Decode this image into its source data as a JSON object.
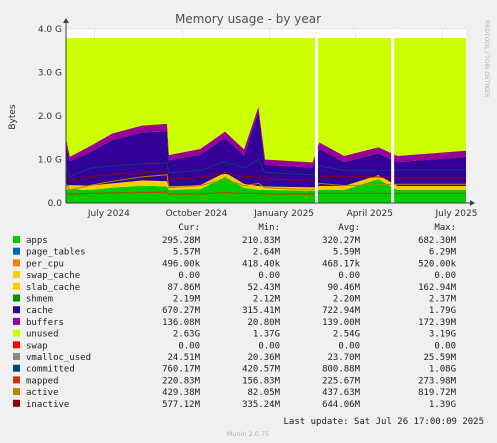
{
  "chart_data": {
    "type": "area",
    "title": "Memory usage - by year",
    "ylabel": "Bytes",
    "watermark": "RRDTOOL / TOBI OETIKER",
    "footer": "Munin 2.0.75",
    "last_update": "Last update: Sat Jul 26 17:00:09 2025",
    "x_ticks": [
      "July 2024",
      "October 2024",
      "January 2025",
      "April 2025",
      "July 2025"
    ],
    "y_ticks": [
      "0.0",
      "1.0 G",
      "2.0 G",
      "3.0 G",
      "4.0 G"
    ],
    "y_tick_values": [
      0,
      1,
      2,
      3,
      4
    ],
    "ylim": [
      0,
      4
    ],
    "y_unit": "GB",
    "time_range": [
      "2024-06-01",
      "2025-07-26"
    ],
    "gaps": [
      "2025-02-19",
      "2025-05-10"
    ],
    "columns": [
      "Cur:",
      "Min:",
      "Avg:",
      "Max:"
    ],
    "colors": {
      "apps": "#00cc00",
      "page_tables": "#0066b3",
      "per_cpu": "#ff8000",
      "swap_cache": "#ffcc00",
      "slab_cache": "#ffcc00",
      "shmem": "#008f00",
      "cache": "#330099",
      "buffers": "#990099",
      "unused": "#ccff00",
      "swap": "#ff0000",
      "vmalloc_used": "#888888",
      "committed": "#00477a",
      "mapped": "#cc3300",
      "active": "#bb8500",
      "inactive": "#8f0000"
    },
    "series": [
      {
        "name": "apps",
        "cur": "295.28M",
        "min": "210.83M",
        "avg": "320.27M",
        "max": "682.30M"
      },
      {
        "name": "page_tables",
        "cur": "5.57M",
        "min": "2.64M",
        "avg": "5.59M",
        "max": "6.29M"
      },
      {
        "name": "per_cpu",
        "cur": "496.00k",
        "min": "418.40k",
        "avg": "468.17k",
        "max": "520.00k"
      },
      {
        "name": "swap_cache",
        "cur": "0.00",
        "min": "0.00",
        "avg": "0.00",
        "max": "0.00"
      },
      {
        "name": "slab_cache",
        "cur": "87.86M",
        "min": "52.43M",
        "avg": "90.46M",
        "max": "162.94M"
      },
      {
        "name": "shmem",
        "cur": "2.19M",
        "min": "2.12M",
        "avg": "2.20M",
        "max": "2.37M"
      },
      {
        "name": "cache",
        "cur": "670.27M",
        "min": "315.41M",
        "avg": "722.94M",
        "max": "1.79G"
      },
      {
        "name": "buffers",
        "cur": "136.08M",
        "min": "20.80M",
        "avg": "139.00M",
        "max": "172.39M"
      },
      {
        "name": "unused",
        "cur": "2.63G",
        "min": "1.37G",
        "avg": "2.54G",
        "max": "3.19G"
      },
      {
        "name": "swap",
        "cur": "0.00",
        "min": "0.00",
        "avg": "0.00",
        "max": "0.00"
      },
      {
        "name": "vmalloc_used",
        "cur": "24.51M",
        "min": "20.36M",
        "avg": "23.70M",
        "max": "25.59M"
      },
      {
        "name": "committed",
        "cur": "760.17M",
        "min": "420.57M",
        "avg": "800.88M",
        "max": "1.08G"
      },
      {
        "name": "mapped",
        "cur": "220.83M",
        "min": "156.83M",
        "avg": "225.67M",
        "max": "273.98M"
      },
      {
        "name": "active",
        "cur": "429.38M",
        "min": "82.05M",
        "avg": "437.63M",
        "max": "819.72M"
      },
      {
        "name": "inactive",
        "cur": "577.12M",
        "min": "335.24M",
        "avg": "644.06M",
        "max": "1.39G"
      }
    ],
    "profile": [
      {
        "date": "2024-06-01",
        "apps": 0.3,
        "slab": 0.09,
        "cache": 0.95,
        "buffers": 0.14,
        "committed": 0.85,
        "mapped": 0.22,
        "active": 0.45,
        "inactive": 0.6
      },
      {
        "date": "2024-06-05",
        "apps": 0.32,
        "slab": 0.09,
        "cache": 0.55,
        "buffers": 0.1,
        "committed": 0.6,
        "mapped": 0.2,
        "active": 0.3,
        "inactive": 0.5
      },
      {
        "date": "2024-06-25",
        "apps": 0.3,
        "slab": 0.1,
        "cache": 0.75,
        "buffers": 0.14,
        "committed": 0.8,
        "mapped": 0.22,
        "active": 0.4,
        "inactive": 0.6
      },
      {
        "date": "2024-07-20",
        "apps": 0.35,
        "slab": 0.1,
        "cache": 1.0,
        "buffers": 0.15,
        "committed": 0.85,
        "mapped": 0.23,
        "active": 0.5,
        "inactive": 0.65
      },
      {
        "date": "2024-08-20",
        "apps": 0.4,
        "slab": 0.12,
        "cache": 1.1,
        "buffers": 0.16,
        "committed": 0.9,
        "mapped": 0.24,
        "active": 0.6,
        "inactive": 0.7
      },
      {
        "date": "2024-09-15",
        "apps": 0.38,
        "slab": 0.12,
        "cache": 1.15,
        "buffers": 0.17,
        "committed": 0.92,
        "mapped": 0.25,
        "active": 0.65,
        "inactive": 0.72
      },
      {
        "date": "2024-09-17",
        "apps": 0.3,
        "slab": 0.08,
        "cache": 0.6,
        "buffers": 0.12,
        "committed": 0.7,
        "mapped": 0.2,
        "active": 0.35,
        "inactive": 0.55
      },
      {
        "date": "2024-10-20",
        "apps": 0.32,
        "slab": 0.09,
        "cache": 0.7,
        "buffers": 0.13,
        "committed": 0.75,
        "mapped": 0.21,
        "active": 0.4,
        "inactive": 0.58
      },
      {
        "date": "2024-11-15",
        "apps": 0.6,
        "slab": 0.1,
        "cache": 0.8,
        "buffers": 0.14,
        "committed": 0.95,
        "mapped": 0.24,
        "active": 0.55,
        "inactive": 0.68
      },
      {
        "date": "2024-12-05",
        "apps": 0.35,
        "slab": 0.09,
        "cache": 0.65,
        "buffers": 0.14,
        "committed": 0.8,
        "mapped": 0.22,
        "active": 0.4,
        "inactive": 0.6
      },
      {
        "date": "2024-12-20",
        "apps": 0.3,
        "slab": 0.09,
        "cache": 1.7,
        "buffers": 0.12,
        "committed": 1.0,
        "mapped": 0.22,
        "active": 0.45,
        "inactive": 0.62
      },
      {
        "date": "2024-12-27",
        "apps": 0.3,
        "slab": 0.08,
        "cache": 0.5,
        "buffers": 0.12,
        "committed": 0.7,
        "mapped": 0.21,
        "active": 0.35,
        "inactive": 0.55
      },
      {
        "date": "2025-02-15",
        "apps": 0.28,
        "slab": 0.08,
        "cache": 0.45,
        "buffers": 0.12,
        "committed": 0.65,
        "mapped": 0.2,
        "active": 0.3,
        "inactive": 0.52
      },
      {
        "date": "2025-02-22",
        "apps": 0.3,
        "slab": 0.09,
        "cache": 0.85,
        "buffers": 0.15,
        "committed": 0.85,
        "mapped": 0.22,
        "active": 0.45,
        "inactive": 0.62
      },
      {
        "date": "2025-03-20",
        "apps": 0.3,
        "slab": 0.09,
        "cache": 0.55,
        "buffers": 0.14,
        "committed": 0.75,
        "mapped": 0.22,
        "active": 0.4,
        "inactive": 0.6
      },
      {
        "date": "2025-04-25",
        "apps": 0.55,
        "slab": 0.09,
        "cache": 0.5,
        "buffers": 0.14,
        "committed": 0.75,
        "mapped": 0.22,
        "active": 0.42,
        "inactive": 0.6
      },
      {
        "date": "2025-05-15",
        "apps": 0.3,
        "slab": 0.09,
        "cache": 0.55,
        "buffers": 0.14,
        "committed": 0.76,
        "mapped": 0.22,
        "active": 0.43,
        "inactive": 0.58
      },
      {
        "date": "2025-07-26",
        "apps": 0.3,
        "slab": 0.09,
        "cache": 0.67,
        "buffers": 0.14,
        "committed": 0.76,
        "mapped": 0.22,
        "active": 0.43,
        "inactive": 0.58
      }
    ]
  }
}
